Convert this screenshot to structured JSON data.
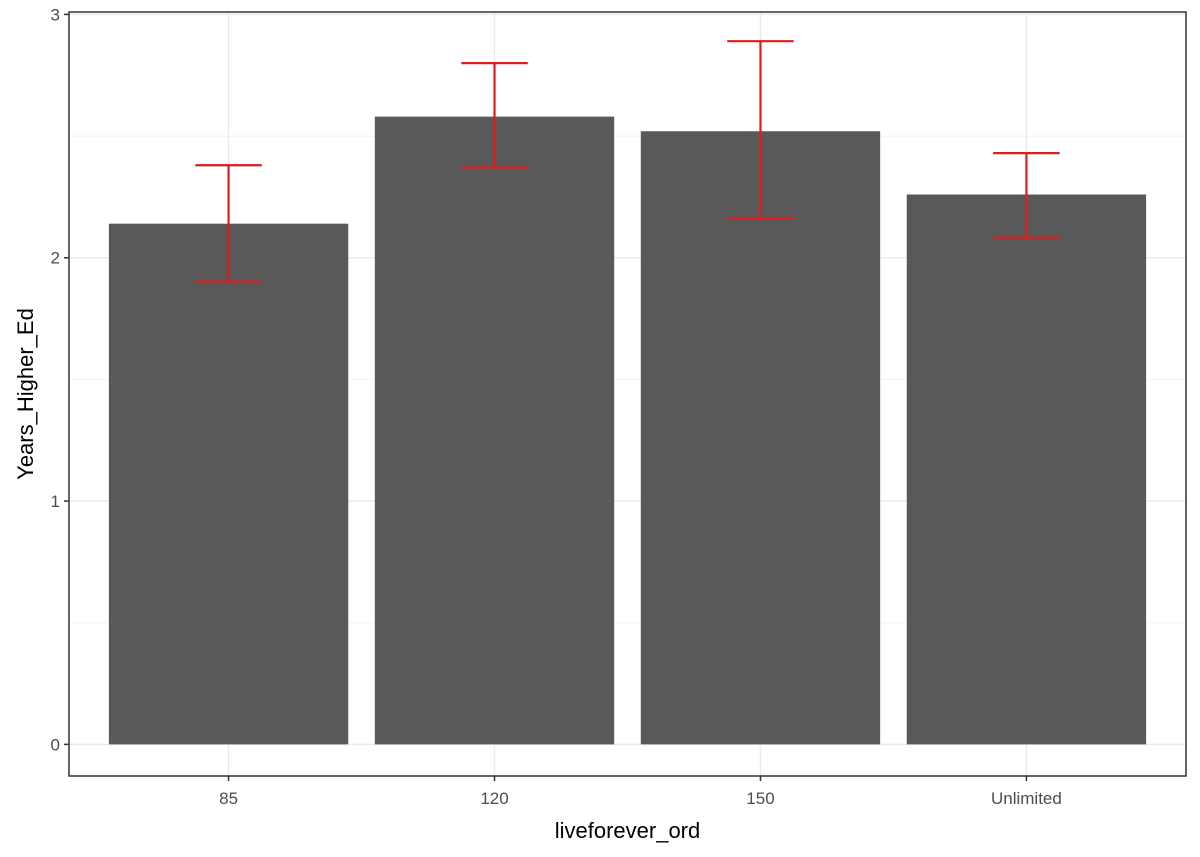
{
  "chart_data": {
    "type": "bar",
    "xlabel": "liveforever_ord",
    "ylabel": "Years_Higher_Ed",
    "categories": [
      "85",
      "120",
      "150",
      "Unlimited"
    ],
    "values": [
      2.14,
      2.58,
      2.52,
      2.26
    ],
    "error_low": [
      1.9,
      2.37,
      2.16,
      2.08
    ],
    "error_high": [
      2.38,
      2.8,
      2.89,
      2.43
    ],
    "ylim": [
      -0.13,
      3.01
    ],
    "yticks": [
      0,
      1,
      2,
      3
    ],
    "ytick_labels": [
      "0",
      "1",
      "2",
      "3"
    ],
    "grid": true,
    "legend": "none",
    "colors": {
      "bar": "#595959",
      "errorbar": "#e31a1c",
      "grid_major": "#ebebeb",
      "grid_minor": "#f2f2f2",
      "panel_border": "#333333",
      "tick_text": "#4d4d4d",
      "axis_title": "#000000"
    }
  }
}
